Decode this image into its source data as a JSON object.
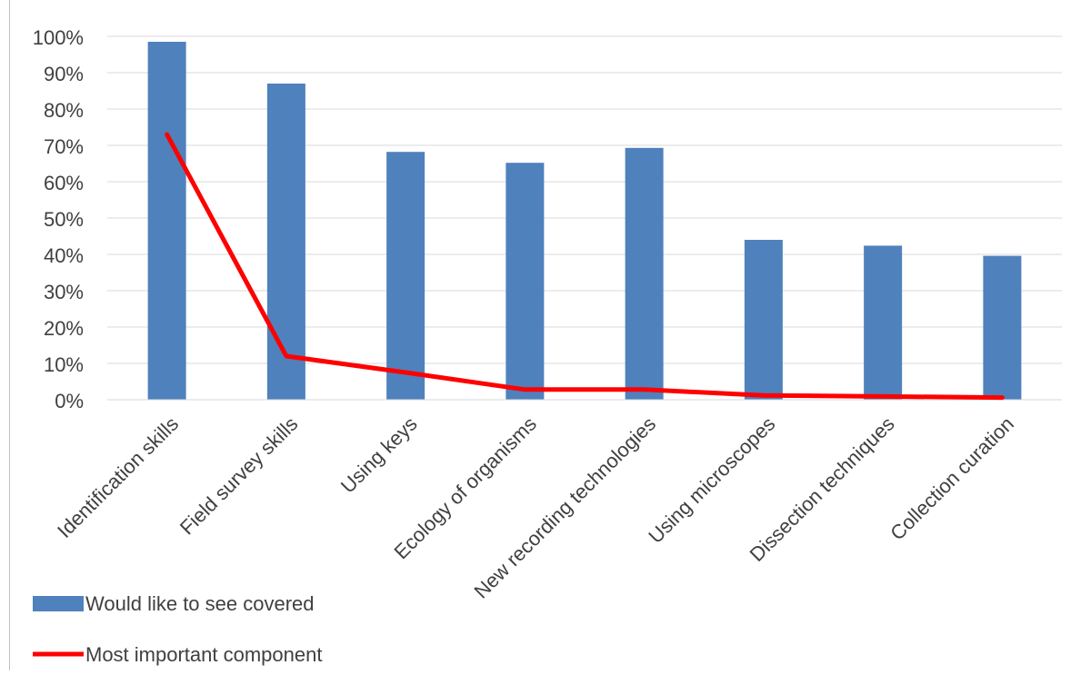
{
  "chart_data": {
    "type": "bar",
    "categories": [
      "Identification skills",
      "Field survey skills",
      "Using keys",
      "Ecology of organisms",
      "New recording technologies",
      "Using microscopes",
      "Dissection techniques",
      "Collection curation"
    ],
    "series": [
      {
        "name": "Would like to see covered",
        "type": "bar",
        "color": "#4f81bd",
        "values": [
          0.985,
          0.87,
          0.682,
          0.652,
          0.693,
          0.44,
          0.424,
          0.396
        ]
      },
      {
        "name": "Most important component",
        "type": "line",
        "color": "#ff0000",
        "values": [
          0.73,
          0.12,
          0.075,
          0.028,
          0.028,
          0.012,
          0.009,
          0.006
        ]
      }
    ],
    "ylim": [
      0,
      1
    ],
    "yticks": [
      "0%",
      "10%",
      "20%",
      "30%",
      "40%",
      "50%",
      "60%",
      "70%",
      "80%",
      "90%",
      "100%"
    ],
    "grid": true,
    "legend_position": "bottom-left",
    "title": ""
  }
}
